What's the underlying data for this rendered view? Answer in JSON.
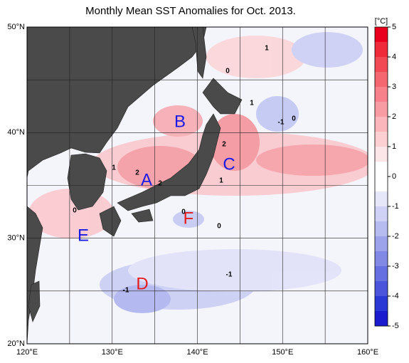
{
  "map": {
    "title": "Monthly Mean SST Anomalies for Oct. 2013.",
    "xlim": [
      120,
      160
    ],
    "ylim": [
      20,
      50
    ],
    "xticks": [
      {
        "value": 120,
        "label": "120°E"
      },
      {
        "value": 130,
        "label": "130°E"
      },
      {
        "value": 140,
        "label": "140°E"
      },
      {
        "value": 150,
        "label": "150°E"
      },
      {
        "value": 160,
        "label": "160°E"
      }
    ],
    "yticks": [
      {
        "value": 20,
        "label": "20°N"
      },
      {
        "value": 30,
        "label": "30°N"
      },
      {
        "value": 40,
        "label": "40°N"
      },
      {
        "value": 50,
        "label": "50°N"
      }
    ],
    "grid": true,
    "colorbar": {
      "label": "[°C]",
      "lim": [
        -5,
        5
      ],
      "ticks": [
        5,
        4,
        3,
        2,
        1,
        0,
        -1,
        -2,
        -3,
        -4,
        -5
      ],
      "colors": [
        "#e8001c",
        "#ef2b39",
        "#f24a55",
        "#f46670",
        "#f6818a",
        "#f89ca3",
        "#fab6bb",
        "#fccfd2",
        "#fde6e8",
        "#ffffff",
        "#ffffff",
        "#e6e8fa",
        "#cfd2f5",
        "#b6bbf0",
        "#9ca3eb",
        "#8189e5",
        "#6670e0",
        "#4a55db",
        "#2b39d4",
        "#1c1ccf"
      ]
    },
    "regions": [
      {
        "label": "A",
        "color": "#1a1ae6"
      },
      {
        "label": "B",
        "color": "#1a1ae6"
      },
      {
        "label": "C",
        "color": "#1a1ae6"
      },
      {
        "label": "D",
        "color": "#e61a1a"
      },
      {
        "label": "E",
        "color": "#1a1ae6"
      },
      {
        "label": "F",
        "color": "#e61a1a"
      }
    ],
    "contour_labels": [
      1,
      0,
      1,
      -1,
      0,
      2,
      1,
      2,
      2,
      1,
      0,
      0,
      0,
      -1,
      -1
    ]
  }
}
